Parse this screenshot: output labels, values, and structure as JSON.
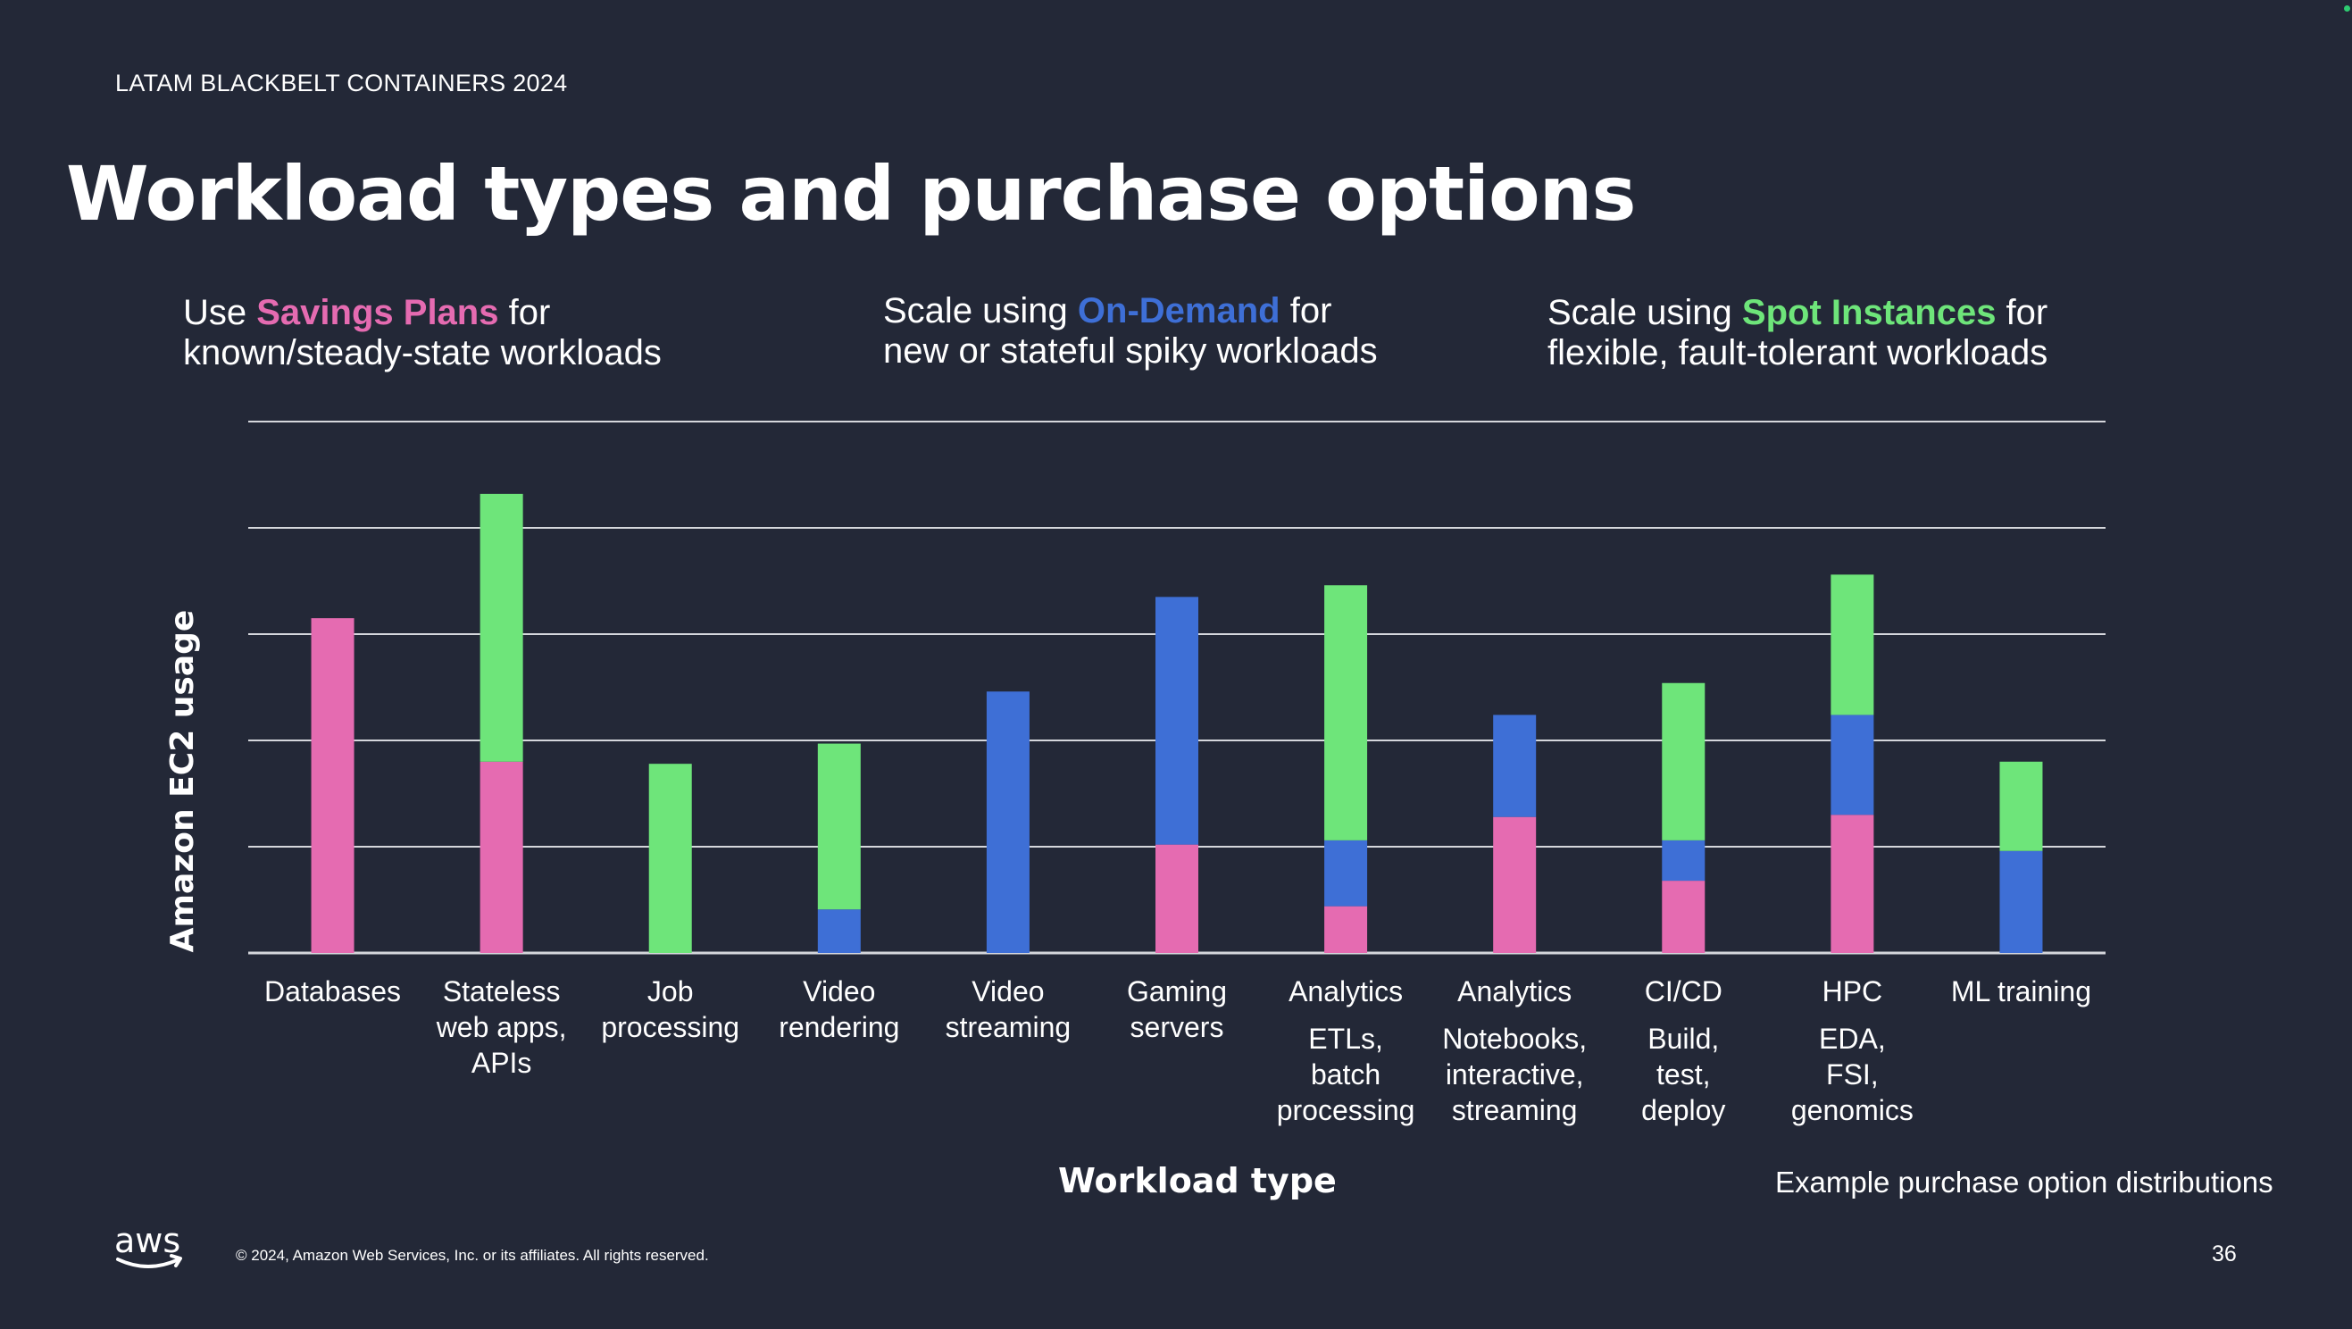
{
  "header": {
    "event_label": "LATAM BLACKBELT CONTAINERS 2024",
    "title": "Workload types and purchase options"
  },
  "callouts": [
    {
      "prefix": "Use ",
      "highlight": "Savings Plans",
      "suffix": " for",
      "line2": "known/steady-state workloads",
      "color": "#e56bb1"
    },
    {
      "prefix": "Scale using ",
      "highlight": "On-Demand",
      "suffix": " for",
      "line2": "new or stateful spiky workloads",
      "color": "#3e6fd6"
    },
    {
      "prefix": "Scale using ",
      "highlight": "Spot Instances",
      "suffix": " for",
      "line2": "flexible, fault-tolerant workloads",
      "color": "#6ee57a"
    }
  ],
  "chart_data": {
    "type": "bar",
    "stacked": true,
    "ylabel": "Amazon EC2 usage",
    "xlabel": "Workload type",
    "ylim": [
      0,
      5
    ],
    "grid": true,
    "y_tick_labels": false,
    "categories": [
      {
        "label": [
          "Databases"
        ],
        "sub": []
      },
      {
        "label": [
          "Stateless",
          "web apps,",
          "APIs"
        ],
        "sub": []
      },
      {
        "label": [
          "Job",
          "processing"
        ],
        "sub": []
      },
      {
        "label": [
          "Video",
          "rendering"
        ],
        "sub": []
      },
      {
        "label": [
          "Video",
          "streaming"
        ],
        "sub": []
      },
      {
        "label": [
          "Gaming",
          "servers"
        ],
        "sub": []
      },
      {
        "label": [
          "Analytics"
        ],
        "sub": [
          "ETLs,",
          "batch",
          "processing"
        ]
      },
      {
        "label": [
          "Analytics"
        ],
        "sub": [
          "Notebooks,",
          "interactive,",
          "streaming"
        ]
      },
      {
        "label": [
          "CI/CD"
        ],
        "sub": [
          "Build,",
          "test,",
          "deploy"
        ]
      },
      {
        "label": [
          "HPC"
        ],
        "sub": [
          "EDA,",
          "FSI,",
          "genomics"
        ]
      },
      {
        "label": [
          "ML training"
        ],
        "sub": []
      }
    ],
    "series": [
      {
        "name": "Savings Plans",
        "color": "#e56bb1",
        "values": [
          3.15,
          1.8,
          0,
          0,
          0,
          1.02,
          0.44,
          1.28,
          0.68,
          1.3,
          0
        ]
      },
      {
        "name": "On-Demand",
        "color": "#3e6fd6",
        "values": [
          0,
          0,
          0,
          0.41,
          2.46,
          2.33,
          0.62,
          0.96,
          0.38,
          0.94,
          0.96
        ]
      },
      {
        "name": "Spot Instances",
        "color": "#6ee57a",
        "values": [
          0,
          2.52,
          1.78,
          1.56,
          0,
          0,
          2.4,
          0,
          1.48,
          1.32,
          0.84
        ]
      }
    ]
  },
  "footer": {
    "note": "Example purchase option distributions",
    "logo_text": "aws",
    "copyright": "© 2024, Amazon Web Services, Inc. or its affiliates. All rights reserved.",
    "page_number": "36",
    "corner_dot_color": "#2ecc71"
  }
}
